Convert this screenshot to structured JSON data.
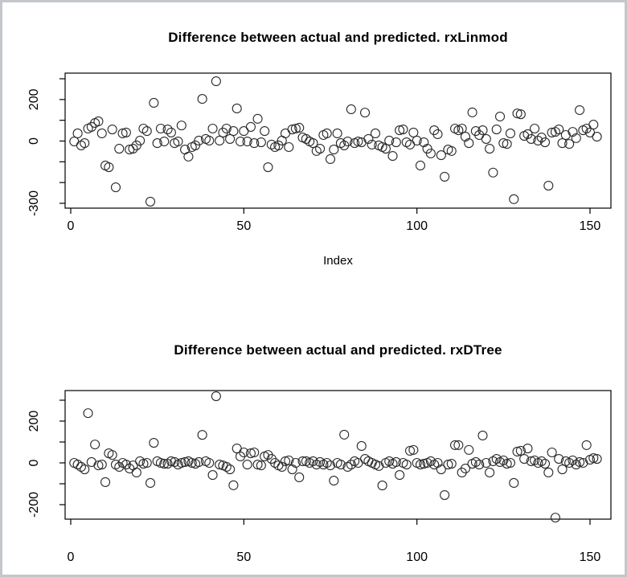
{
  "window": {
    "background": "#ffffff",
    "border_color": "#c3c7cb",
    "axis_color": "#000000",
    "marker_color": "#2a2a2a"
  },
  "chart_data": [
    {
      "type": "scatter",
      "title": "Difference between actual and predicted. rxLinmod",
      "xlabel": "Index",
      "ylabel": "",
      "marker": "open-circle",
      "grid": false,
      "legend": "none",
      "x_ticks": [
        0,
        50,
        100,
        150
      ],
      "y_ticks": [
        300,
        200,
        100,
        0,
        -100,
        -200,
        -300
      ],
      "y_ticks_labeled": [
        200,
        0,
        -300
      ],
      "xlim": [
        -2,
        156
      ],
      "ylim": [
        -323,
        327
      ],
      "x_start": 1,
      "values": [
        -2,
        37,
        -21,
        -10,
        60,
        68,
        87,
        95,
        37,
        -118,
        -126,
        56,
        -223,
        -37,
        37,
        41,
        -41,
        -37,
        -21,
        2,
        60,
        48,
        -292,
        184,
        -10,
        60,
        -2,
        56,
        41,
        -10,
        -2,
        75,
        -41,
        -75,
        -29,
        -21,
        2,
        203,
        10,
        2,
        60,
        288,
        2,
        41,
        60,
        10,
        48,
        157,
        -2,
        48,
        -2,
        68,
        -10,
        107,
        -6,
        48,
        -126,
        -17,
        -29,
        -21,
        2,
        37,
        -29,
        56,
        60,
        64,
        17,
        10,
        -2,
        -10,
        -48,
        -37,
        29,
        37,
        -87,
        -41,
        37,
        -10,
        -21,
        -2,
        153,
        -10,
        -2,
        -6,
        137,
        10,
        -17,
        37,
        -21,
        -29,
        -37,
        2,
        -72,
        -6,
        52,
        56,
        -6,
        -17,
        41,
        2,
        -118,
        -6,
        -37,
        -60,
        52,
        33,
        -68,
        -172,
        -41,
        -48,
        60,
        52,
        60,
        21,
        -10,
        138,
        48,
        29,
        52,
        10,
        -37,
        -152,
        56,
        118,
        -10,
        -14,
        37,
        -280,
        133,
        129,
        25,
        33,
        10,
        60,
        2,
        17,
        -6,
        -215,
        41,
        44,
        56,
        -10,
        29,
        -14,
        44,
        14,
        149,
        52,
        60,
        41,
        79,
        21
      ]
    },
    {
      "type": "scatter",
      "title": "Difference between actual and predicted. rxDTree",
      "xlabel": "",
      "ylabel": "",
      "marker": "open-circle",
      "grid": false,
      "legend": "none",
      "x_ticks": [
        0,
        50,
        100,
        150
      ],
      "y_ticks": [
        300,
        200,
        100,
        0,
        -100,
        -200
      ],
      "y_ticks_labeled": [
        200,
        0,
        -200
      ],
      "xlim": [
        -2,
        156
      ],
      "ylim": [
        -269,
        346
      ],
      "x_start": 1,
      "values": [
        0,
        -8,
        -19,
        -31,
        238,
        4,
        88,
        -12,
        -8,
        -92,
        46,
        38,
        -8,
        -19,
        0,
        -8,
        -27,
        -12,
        -46,
        8,
        -4,
        0,
        -96,
        96,
        8,
        0,
        -4,
        -4,
        8,
        4,
        -8,
        0,
        4,
        8,
        0,
        -4,
        4,
        134,
        8,
        0,
        -58,
        319,
        -8,
        -12,
        -19,
        -31,
        -107,
        69,
        31,
        50,
        -8,
        46,
        50,
        -8,
        -12,
        31,
        38,
        19,
        0,
        -12,
        -19,
        8,
        12,
        -31,
        0,
        -69,
        8,
        8,
        0,
        8,
        -8,
        4,
        -8,
        0,
        -12,
        -85,
        0,
        -8,
        135,
        -19,
        -8,
        8,
        0,
        81,
        19,
        8,
        0,
        -8,
        -15,
        -108,
        0,
        8,
        -4,
        4,
        -58,
        0,
        -8,
        58,
        62,
        0,
        -8,
        -4,
        0,
        8,
        -8,
        0,
        -31,
        -154,
        -8,
        -4,
        85,
        85,
        -46,
        -27,
        62,
        -4,
        4,
        -8,
        131,
        0,
        -46,
        8,
        19,
        4,
        12,
        -4,
        0,
        -96,
        54,
        58,
        19,
        69,
        8,
        12,
        0,
        8,
        -4,
        -46,
        50,
        -262,
        19,
        -31,
        8,
        0,
        12,
        -8,
        4,
        0,
        85,
        15,
        23,
        19
      ]
    }
  ]
}
